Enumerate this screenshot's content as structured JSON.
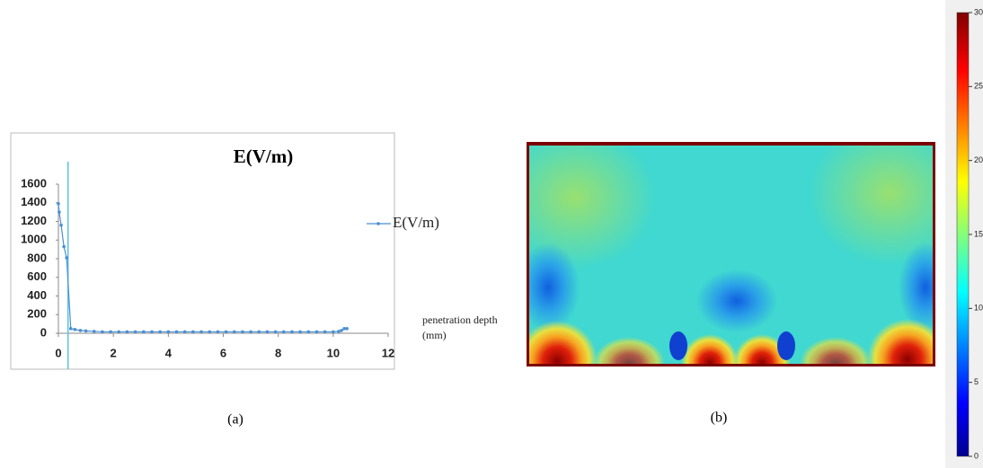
{
  "chart_data": [
    {
      "type": "line",
      "title": "E(V/m)",
      "x_label": "penetration depth (mm)",
      "x": [
        0,
        0.03,
        0.1,
        0.2,
        0.3,
        0.45,
        0.6,
        0.8,
        1.0,
        1.3,
        1.6,
        1.9,
        2.2,
        2.5,
        2.8,
        3.1,
        3.4,
        3.7,
        4.0,
        4.3,
        4.6,
        4.9,
        5.2,
        5.5,
        5.8,
        6.1,
        6.4,
        6.7,
        7.0,
        7.3,
        7.6,
        7.9,
        8.2,
        8.5,
        8.8,
        9.1,
        9.4,
        9.7,
        10.0,
        10.2,
        10.3,
        10.4,
        10.5
      ],
      "series": [
        {
          "name": "E(V/m)",
          "color": "#4a8fd4",
          "values": [
            1390,
            1300,
            1160,
            930,
            810,
            50,
            40,
            30,
            25,
            20,
            15,
            15,
            15,
            15,
            15,
            15,
            15,
            15,
            15,
            15,
            15,
            15,
            15,
            15,
            15,
            15,
            15,
            15,
            15,
            15,
            15,
            15,
            15,
            15,
            15,
            15,
            15,
            15,
            15,
            20,
            30,
            50,
            50
          ]
        }
      ],
      "vline_x": 0.35,
      "vline_color": "#5bc0de",
      "xlim": [
        0,
        12
      ],
      "xticks": [
        0,
        2,
        4,
        6,
        8,
        10,
        12
      ],
      "ylim": [
        0,
        1600
      ],
      "yticks": [
        0,
        200,
        400,
        600,
        800,
        1000,
        1200,
        1400,
        1600
      ]
    },
    {
      "type": "heatmap",
      "colorbar_lim": [
        0,
        30
      ],
      "colorbar_ticks": [
        0,
        5,
        10,
        15,
        20,
        25,
        30
      ]
    }
  ],
  "captions": [
    "(a)",
    "(b)"
  ]
}
